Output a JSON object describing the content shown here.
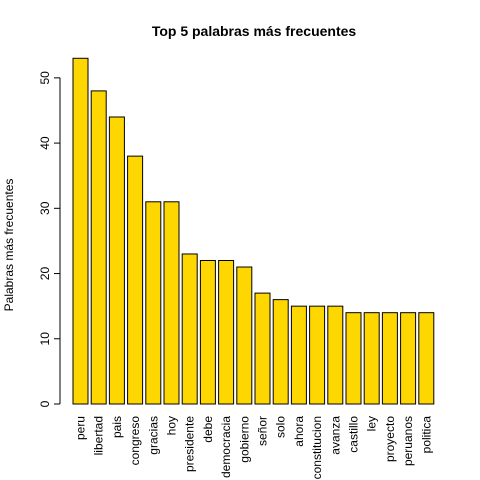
{
  "chart_data": {
    "type": "bar",
    "title": "Top 5 palabras más frecuentes",
    "xlabel": "",
    "ylabel": "Palabras más frecuentes",
    "categories": [
      "peru",
      "libertad",
      "pais",
      "congreso",
      "gracias",
      "hoy",
      "presidente",
      "debe",
      "democracia",
      "gobierno",
      "señor",
      "solo",
      "ahora",
      "constitucion",
      "avanza",
      "castillo",
      "ley",
      "proyecto",
      "peruanos",
      "politica"
    ],
    "values": [
      53,
      48,
      44,
      38,
      31,
      31,
      23,
      22,
      22,
      21,
      17,
      16,
      15,
      15,
      15,
      14,
      14,
      14,
      14,
      14
    ],
    "y_ticks": [
      0,
      10,
      20,
      30,
      40,
      50
    ],
    "ylim": [
      0,
      55.65
    ],
    "bar_color": "#FFD700",
    "bar_edge_color": "#000000",
    "grid": false,
    "legend": "none"
  }
}
